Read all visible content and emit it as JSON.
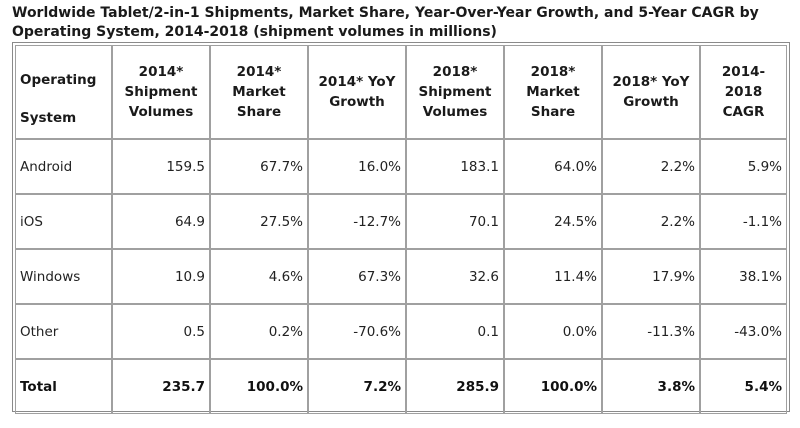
{
  "title_line1": "Worldwide Tablet/2-in-1 Shipments, Market Share, Year-Over-Year Growth, and 5-Year CAGR by",
  "title_line2": "Operating System, 2014-2018 (shipment volumes in millions)",
  "headers": [
    [
      "Operating",
      "System"
    ],
    [
      "2014*",
      "Shipment",
      "Volumes"
    ],
    [
      "2014*",
      "Market",
      "Share"
    ],
    [
      "2014* YoY",
      "Growth"
    ],
    [
      "2018*",
      "Shipment",
      "Volumes"
    ],
    [
      "2018*",
      "Market",
      "Share"
    ],
    [
      "2018* YoY",
      "Growth"
    ],
    [
      "2014-2018",
      "CAGR"
    ]
  ],
  "rows": [
    [
      "Android",
      "159.5",
      "67.7%",
      "16.0%",
      "183.1",
      "64.0%",
      "2.2%",
      "5.9%"
    ],
    [
      "iOS",
      "64.9",
      "27.5%",
      "-12.7%",
      "70.1",
      "24.5%",
      "2.2%",
      "-1.1%"
    ],
    [
      "Windows",
      "10.9",
      "4.6%",
      "67.3%",
      "32.6",
      "11.4%",
      "17.9%",
      "38.1%"
    ],
    [
      "Other",
      "0.5",
      "0.2%",
      "-70.6%",
      "0.1",
      "0.0%",
      "-11.3%",
      "-43.0%"
    ]
  ],
  "total": [
    "Total",
    "235.7",
    "100.0%",
    "7.2%",
    "285.9",
    "100.0%",
    "3.8%",
    "5.4%"
  ]
}
